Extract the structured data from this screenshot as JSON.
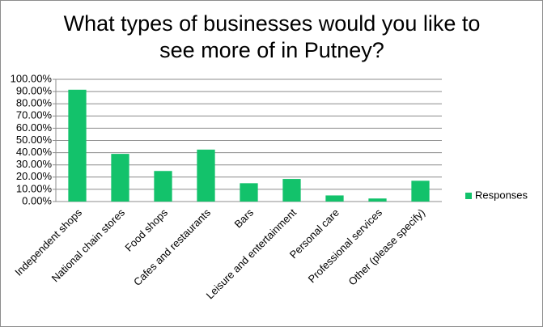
{
  "chart_data": {
    "type": "bar",
    "title": "What types of businesses would you like to see more of in Putney?",
    "categories": [
      "Independent shops",
      "National chain stores",
      "Food shops",
      "Cafes and restaurants",
      "Bars",
      "Leisure and entertainment",
      "Personal care",
      "Professional services",
      "Other (please specify)"
    ],
    "series": [
      {
        "name": "Responses",
        "color": "#13c26b",
        "values": [
          91.5,
          39,
          25,
          42.5,
          15,
          18.5,
          5,
          2.5,
          17
        ]
      }
    ],
    "ylim": [
      0,
      100
    ],
    "yticks": [
      {
        "value": 0,
        "label": "0.00%"
      },
      {
        "value": 10,
        "label": "10.00%"
      },
      {
        "value": 20,
        "label": "20.00%"
      },
      {
        "value": 30,
        "label": "30.00%"
      },
      {
        "value": 40,
        "label": "40.00%"
      },
      {
        "value": 50,
        "label": "50.00%"
      },
      {
        "value": 60,
        "label": "60.00%"
      },
      {
        "value": 70,
        "label": "70.00%"
      },
      {
        "value": 80,
        "label": "80.00%"
      },
      {
        "value": 90,
        "label": "90.00%"
      },
      {
        "value": 100,
        "label": "100.00%"
      }
    ],
    "grid": true,
    "legend": "right"
  }
}
